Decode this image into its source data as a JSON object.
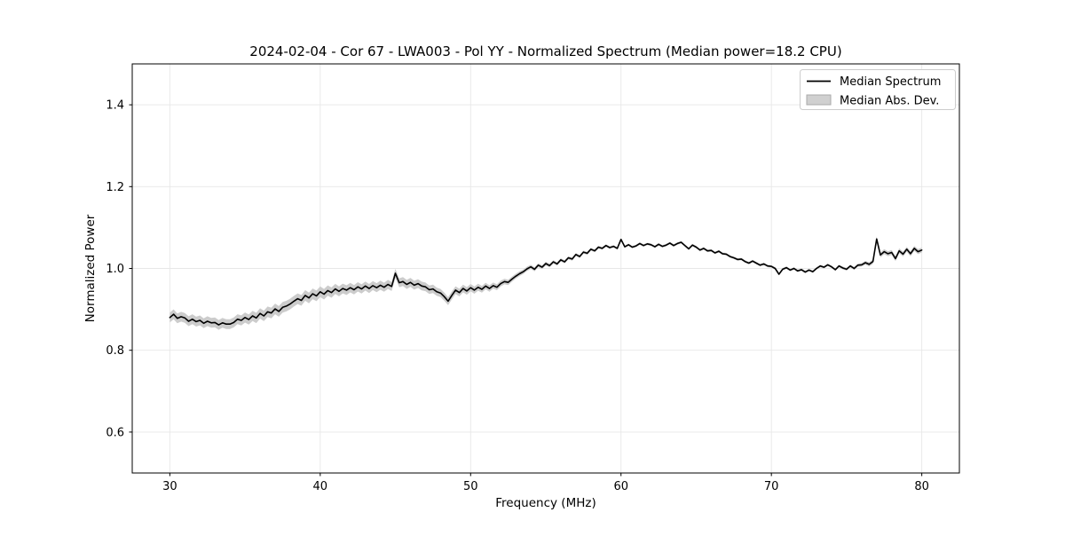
{
  "chart_data": {
    "type": "line",
    "title": "2024-02-04 - Cor 67 - LWA003 - Pol YY - Normalized Spectrum (Median power=18.2 CPU)",
    "xlabel": "Frequency (MHz)",
    "ylabel": "Normalized Power",
    "xlim": [
      27.5,
      82.5
    ],
    "ylim": [
      0.5,
      1.5
    ],
    "xticks": [
      30,
      40,
      50,
      60,
      70,
      80
    ],
    "xtick_labels": [
      "30",
      "40",
      "50",
      "60",
      "70",
      "80"
    ],
    "yticks": [
      0.6,
      0.8,
      1.0,
      1.2,
      1.4
    ],
    "ytick_labels": [
      "0.6",
      "0.8",
      "1.0",
      "1.2",
      "1.4"
    ],
    "grid": true,
    "colors": {
      "line": "#000000",
      "band": "#cccccc",
      "gridline": "#e7e7e7",
      "frame": "#000000",
      "legend_border": "#cccccc",
      "legend_patch_fill": "#d0d0d0",
      "legend_patch_edge": "#aaaaaa",
      "background": "#ffffff"
    },
    "legend": {
      "position": "upper right",
      "entries": [
        {
          "label": "Median Spectrum",
          "type": "line",
          "color": "#000000"
        },
        {
          "label": "Median Abs. Dev.",
          "type": "patch",
          "color": "#d0d0d0"
        }
      ]
    },
    "series": [
      {
        "name": "Median Spectrum",
        "type": "line",
        "color": "#000000",
        "x_start": 30.0,
        "x_step": 0.25,
        "values": [
          0.88,
          0.888,
          0.878,
          0.882,
          0.879,
          0.871,
          0.876,
          0.87,
          0.873,
          0.866,
          0.871,
          0.867,
          0.868,
          0.862,
          0.867,
          0.864,
          0.864,
          0.868,
          0.876,
          0.873,
          0.88,
          0.875,
          0.884,
          0.879,
          0.89,
          0.884,
          0.894,
          0.891,
          0.901,
          0.895,
          0.905,
          0.908,
          0.913,
          0.92,
          0.926,
          0.922,
          0.934,
          0.928,
          0.938,
          0.933,
          0.943,
          0.937,
          0.946,
          0.941,
          0.95,
          0.944,
          0.951,
          0.947,
          0.953,
          0.948,
          0.955,
          0.95,
          0.957,
          0.951,
          0.958,
          0.953,
          0.959,
          0.954,
          0.961,
          0.956,
          0.988,
          0.965,
          0.968,
          0.961,
          0.966,
          0.959,
          0.963,
          0.957,
          0.955,
          0.948,
          0.95,
          0.943,
          0.94,
          0.931,
          0.92,
          0.934,
          0.947,
          0.941,
          0.951,
          0.945,
          0.953,
          0.947,
          0.954,
          0.949,
          0.957,
          0.951,
          0.958,
          0.954,
          0.963,
          0.968,
          0.966,
          0.974,
          0.981,
          0.987,
          0.992,
          0.999,
          1.004,
          0.998,
          1.008,
          1.003,
          1.012,
          1.007,
          1.016,
          1.011,
          1.021,
          1.016,
          1.026,
          1.023,
          1.034,
          1.029,
          1.04,
          1.037,
          1.047,
          1.043,
          1.052,
          1.049,
          1.056,
          1.051,
          1.054,
          1.049,
          1.071,
          1.053,
          1.058,
          1.052,
          1.055,
          1.061,
          1.056,
          1.06,
          1.058,
          1.053,
          1.059,
          1.054,
          1.057,
          1.062,
          1.056,
          1.061,
          1.064,
          1.056,
          1.048,
          1.057,
          1.052,
          1.045,
          1.049,
          1.043,
          1.044,
          1.038,
          1.042,
          1.036,
          1.035,
          1.029,
          1.026,
          1.022,
          1.023,
          1.017,
          1.013,
          1.018,
          1.013,
          1.008,
          1.011,
          1.006,
          1.005,
          1.0,
          0.986,
          0.998,
          1.002,
          0.996,
          1.0,
          0.994,
          0.997,
          0.991,
          0.996,
          0.992,
          1.0,
          1.006,
          1.003,
          1.009,
          1.004,
          0.997,
          1.006,
          1.001,
          0.998,
          1.006,
          1.0,
          1.008,
          1.009,
          1.014,
          1.01,
          1.017,
          1.072,
          1.033,
          1.041,
          1.036,
          1.039,
          1.024,
          1.043,
          1.035,
          1.047,
          1.036,
          1.049,
          1.041,
          1.045
        ]
      },
      {
        "name": "Median Abs. Dev.",
        "type": "band",
        "around": "Median Spectrum",
        "color": "#cccccc",
        "half_width_points": [
          [
            30,
            0.012
          ],
          [
            34,
            0.012
          ],
          [
            37,
            0.013
          ],
          [
            40,
            0.013
          ],
          [
            43,
            0.011
          ],
          [
            46,
            0.011
          ],
          [
            48,
            0.01
          ],
          [
            50,
            0.009
          ],
          [
            52,
            0.007
          ],
          [
            54,
            0.005
          ],
          [
            56,
            0.004
          ],
          [
            60,
            0.003
          ],
          [
            70,
            0.003
          ],
          [
            74,
            0.003
          ],
          [
            76,
            0.004
          ],
          [
            77,
            0.006
          ],
          [
            80,
            0.006
          ]
        ]
      }
    ]
  }
}
